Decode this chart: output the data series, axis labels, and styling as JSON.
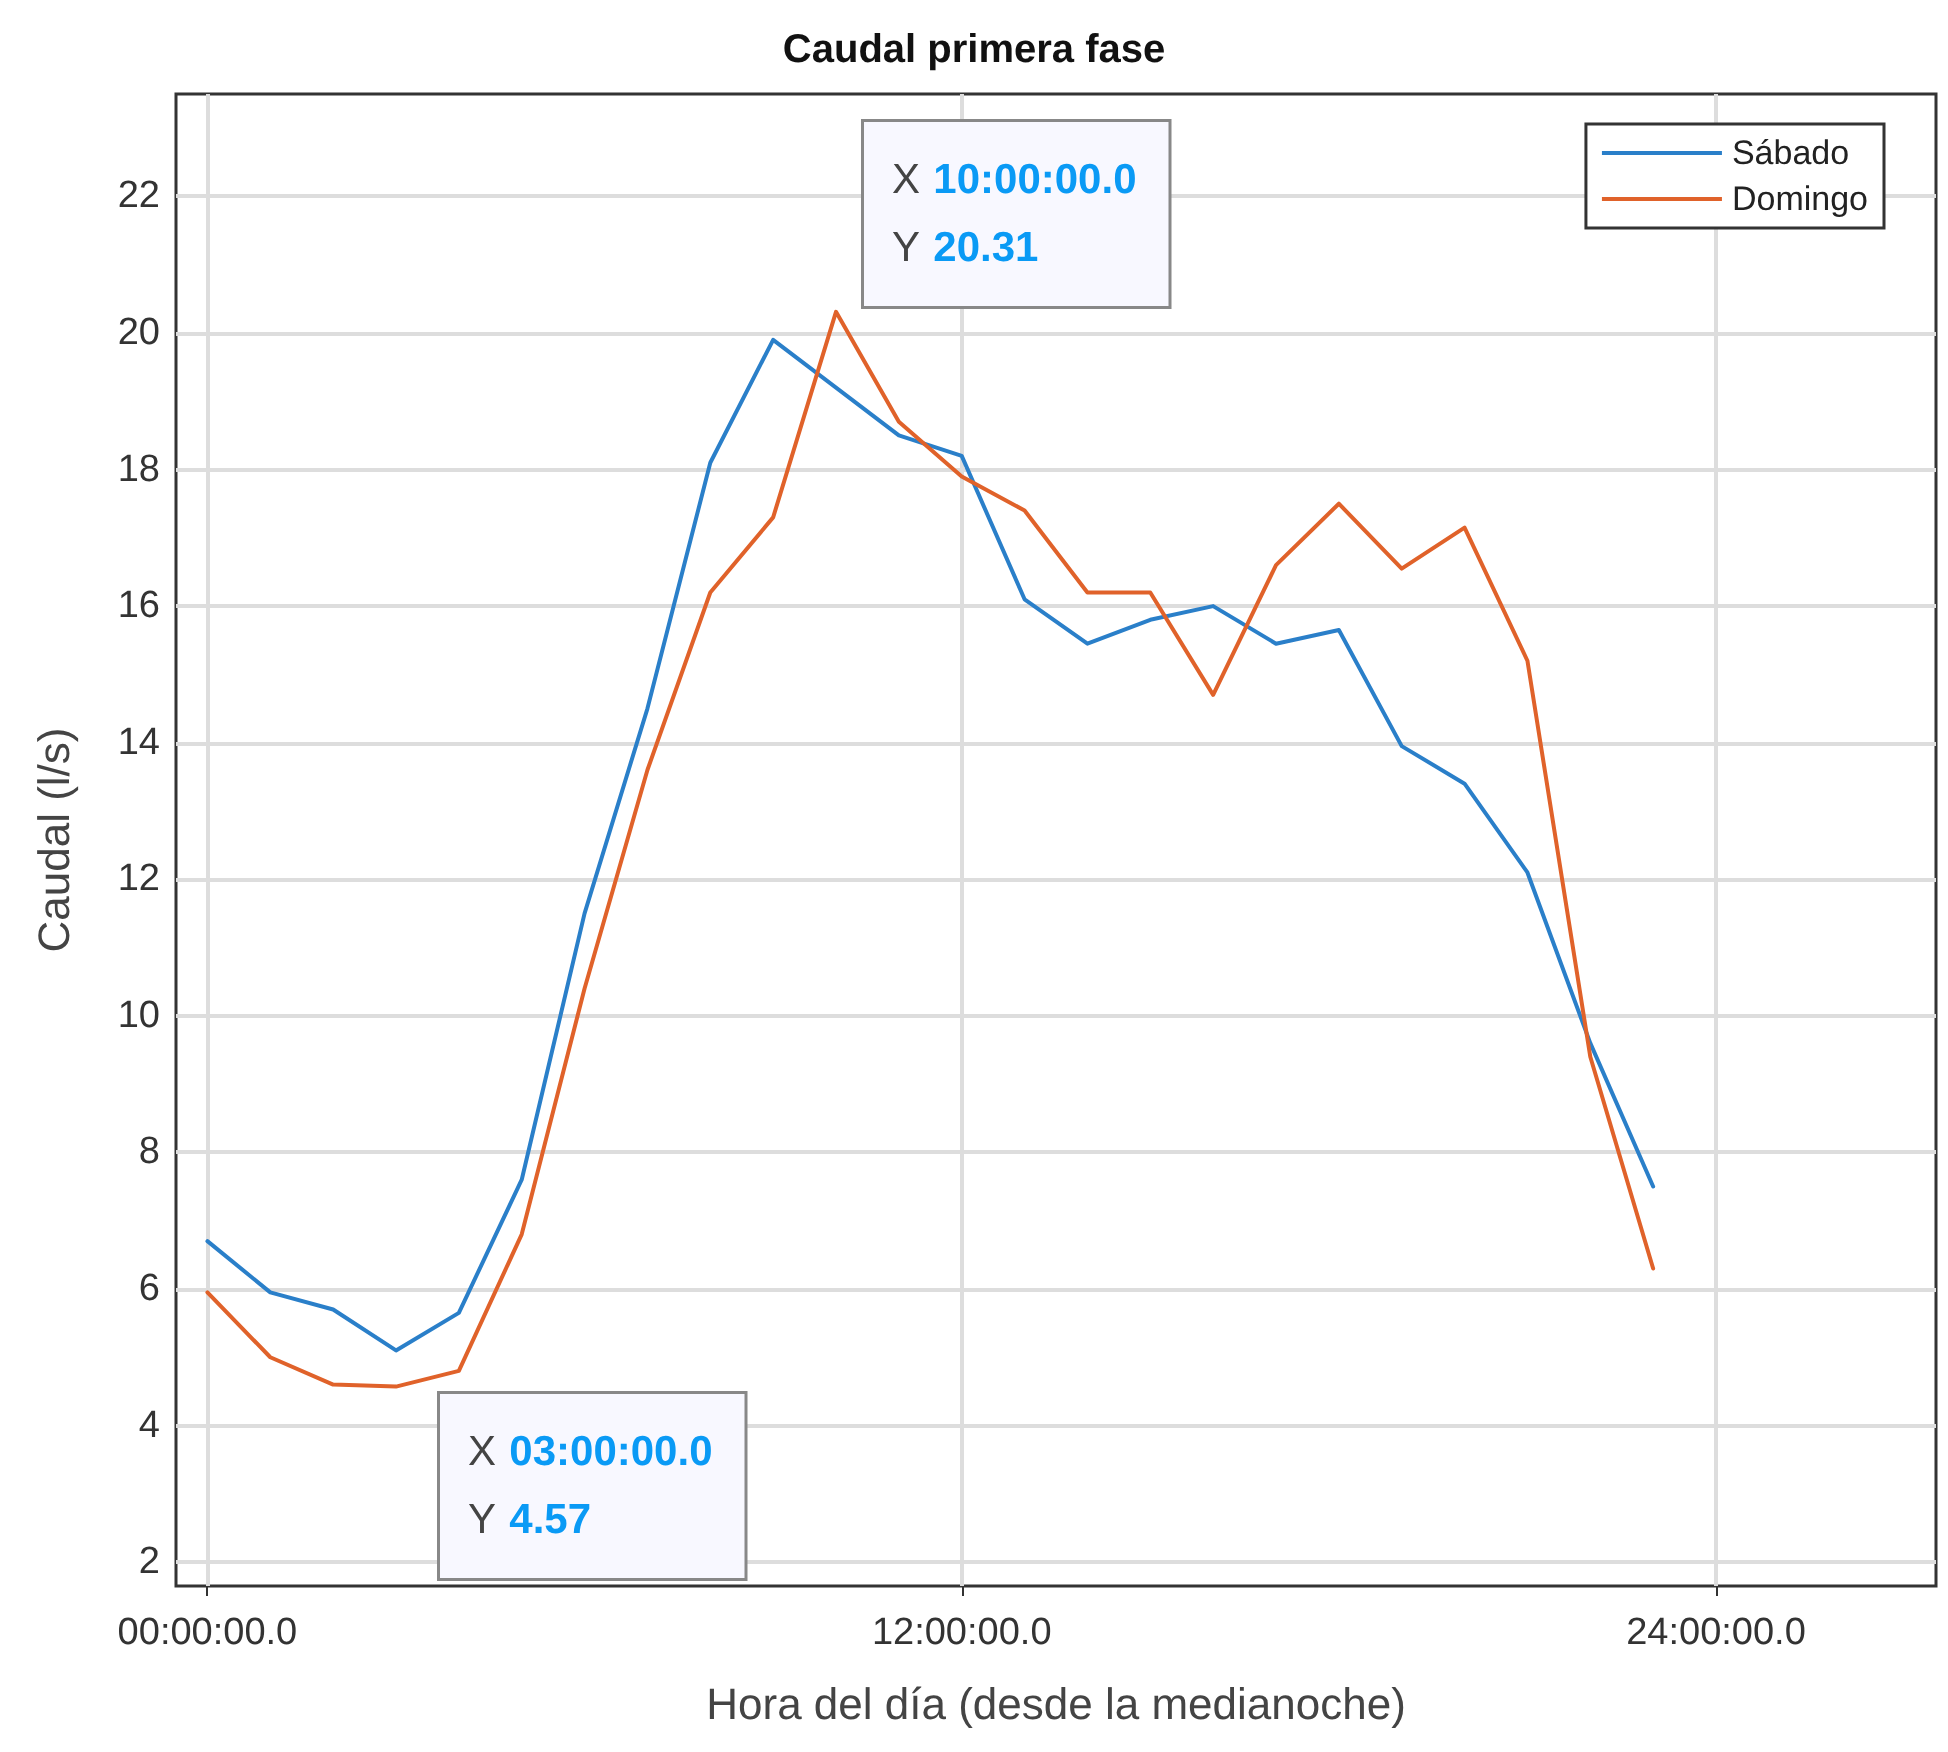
{
  "chart_data": {
    "type": "line",
    "title": "Caudal primera fase",
    "xlabel": "Hora del día (desde la medianoche)",
    "ylabel": "Caudal (l/s)",
    "categories": [
      "00:00:00.0",
      null,
      null,
      null,
      null,
      null,
      null,
      null,
      null,
      null,
      null,
      null,
      "12:00:00.0",
      null,
      null,
      null,
      null,
      null,
      null,
      null,
      null,
      null,
      null,
      null,
      "24:00:00.0",
      null,
      null,
      null
    ],
    "series": [
      {
        "name": "Sábado",
        "color": "#2a7fc9",
        "values": [
          6.7,
          5.95,
          5.7,
          5.1,
          5.65,
          7.6,
          11.5,
          14.5,
          18.1,
          19.9,
          19.2,
          18.5,
          18.2,
          16.1,
          15.45,
          15.8,
          16.0,
          15.45,
          15.65,
          13.95,
          13.4,
          12.1,
          9.6,
          7.5,
          null,
          null,
          null,
          null
        ]
      },
      {
        "name": "Domingo",
        "color": "#e0622a",
        "values": [
          5.95,
          5.0,
          4.6,
          4.57,
          4.8,
          6.8,
          10.4,
          13.6,
          16.2,
          17.3,
          20.31,
          18.7,
          17.9,
          17.4,
          16.2,
          16.2,
          14.7,
          16.6,
          17.5,
          16.55,
          17.15,
          15.2,
          9.4,
          6.3,
          null,
          null,
          null,
          null
        ]
      }
    ],
    "ylim": [
      1.65,
      23.5
    ],
    "yticks": [
      2,
      4,
      6,
      8,
      10,
      12,
      14,
      16,
      18,
      20,
      22
    ],
    "grid": true,
    "legend": "top right",
    "marker": "none",
    "line_style": "solid",
    "annotations": [
      "X 10:00:00.0\nY 20.31",
      "X 03:00:00.0\nY 4.57"
    ]
  }
}
